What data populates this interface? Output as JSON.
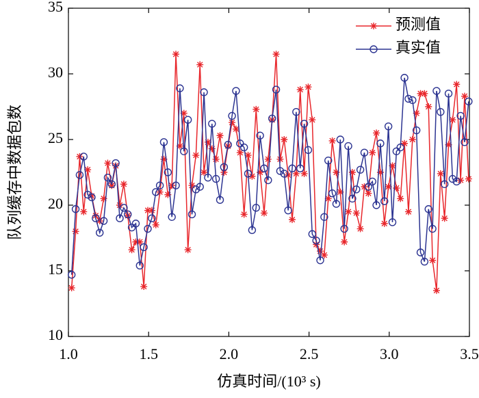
{
  "chart_data": {
    "type": "line",
    "x_label": "仿真时间/(10³ s)",
    "y_label": "队列缓存中数据包数",
    "x": [
      1.02,
      1.045,
      1.07,
      1.095,
      1.12,
      1.145,
      1.17,
      1.195,
      1.22,
      1.245,
      1.27,
      1.295,
      1.32,
      1.345,
      1.37,
      1.395,
      1.42,
      1.445,
      1.47,
      1.495,
      1.52,
      1.545,
      1.57,
      1.595,
      1.62,
      1.645,
      1.67,
      1.695,
      1.72,
      1.745,
      1.77,
      1.795,
      1.82,
      1.845,
      1.87,
      1.895,
      1.92,
      1.945,
      1.97,
      1.995,
      2.02,
      2.045,
      2.07,
      2.095,
      2.12,
      2.145,
      2.17,
      2.195,
      2.22,
      2.245,
      2.27,
      2.295,
      2.32,
      2.345,
      2.37,
      2.395,
      2.42,
      2.445,
      2.47,
      2.495,
      2.52,
      2.545,
      2.57,
      2.595,
      2.62,
      2.645,
      2.67,
      2.695,
      2.72,
      2.745,
      2.77,
      2.795,
      2.82,
      2.845,
      2.87,
      2.895,
      2.92,
      2.945,
      2.97,
      2.995,
      3.02,
      3.045,
      3.07,
      3.095,
      3.12,
      3.145,
      3.17,
      3.195,
      3.22,
      3.245,
      3.27,
      3.295,
      3.32,
      3.345,
      3.37,
      3.395,
      3.42,
      3.445,
      3.47,
      3.495
    ],
    "series": [
      {
        "name": "预测值",
        "color": "#e8262b",
        "marker": "asterisk",
        "values": [
          13.7,
          18,
          23.7,
          19.5,
          22.7,
          20.7,
          19.2,
          18.8,
          20.5,
          23.2,
          21.5,
          23,
          20,
          21.6,
          19.2,
          16.6,
          17.2,
          17.2,
          13.8,
          19.6,
          19.6,
          18.5,
          21,
          23.5,
          20.8,
          21.5,
          31.5,
          24.5,
          27,
          16.6,
          21.5,
          23.8,
          30.7,
          22.5,
          24.8,
          24.3,
          23.5,
          25.3,
          22.5,
          24.5,
          26.3,
          25.8,
          24,
          19.3,
          23.8,
          22.2,
          27.3,
          22.5,
          19.4,
          23.5,
          26.5,
          31.5,
          23.5,
          25,
          22.3,
          18.9,
          22.4,
          28.8,
          22.4,
          29,
          26.5,
          17,
          16.5,
          16.2,
          20.5,
          24.9,
          22.5,
          21,
          17.2,
          19.5,
          22.5,
          19.4,
          18.2,
          21.4,
          20.9,
          24,
          25.5,
          22.5,
          18.6,
          21.4,
          23,
          21.3,
          20.5,
          24.7,
          19.5,
          25,
          27,
          28.5,
          28.5,
          27.5,
          15.8,
          13.5,
          22.4,
          19,
          24.6,
          26.5,
          29.2,
          21.9,
          28.3,
          22
        ]
      },
      {
        "name": "真实值",
        "color": "#2b3391",
        "marker": "circle",
        "values": [
          14.7,
          19.7,
          22.3,
          23.7,
          20.8,
          20.6,
          19,
          17.9,
          18.8,
          22.1,
          21.6,
          23.2,
          19,
          19.8,
          19.3,
          18.3,
          18.6,
          15.4,
          16.8,
          18.2,
          19,
          21,
          21.5,
          24.8,
          22.5,
          19.1,
          21.5,
          28.9,
          24.1,
          26.5,
          19.3,
          21.2,
          21.4,
          28.6,
          22.1,
          26.2,
          22,
          20.4,
          22.9,
          24.6,
          26.8,
          28.7,
          24.7,
          24.4,
          22.4,
          18.1,
          19.8,
          25.3,
          22.8,
          21.9,
          26.6,
          28.8,
          22.6,
          22.4,
          19.6,
          22.8,
          27.1,
          22.8,
          26.2,
          24.2,
          17.8,
          17.3,
          15.8,
          19.1,
          23.4,
          20.9,
          20.1,
          25,
          18.2,
          24.5,
          20.5,
          21.2,
          22.7,
          24,
          21.4,
          21.8,
          20,
          24.7,
          20.3,
          26,
          18.7,
          24.1,
          24.4,
          29.7,
          28.1,
          28,
          25.7,
          16.4,
          15.7,
          19.7,
          18.2,
          28.7,
          27.1,
          21.6,
          28.5,
          22,
          21.8,
          26.8,
          24.8,
          27.9
        ]
      }
    ],
    "xlim": [
      1,
      3.5
    ],
    "xticks": [
      {
        "value": 1,
        "label": "1.0"
      },
      {
        "value": 1.5,
        "label": "1.5"
      },
      {
        "value": 2,
        "label": "2.0"
      },
      {
        "value": 2.5,
        "label": "2.5"
      },
      {
        "value": 3,
        "label": "3.0"
      },
      {
        "value": 3.5,
        "label": "3.5"
      }
    ],
    "ylim": [
      10,
      35
    ],
    "yticks": [
      10,
      15,
      20,
      25,
      30,
      35
    ],
    "legend": "upper-right",
    "grid": false
  }
}
